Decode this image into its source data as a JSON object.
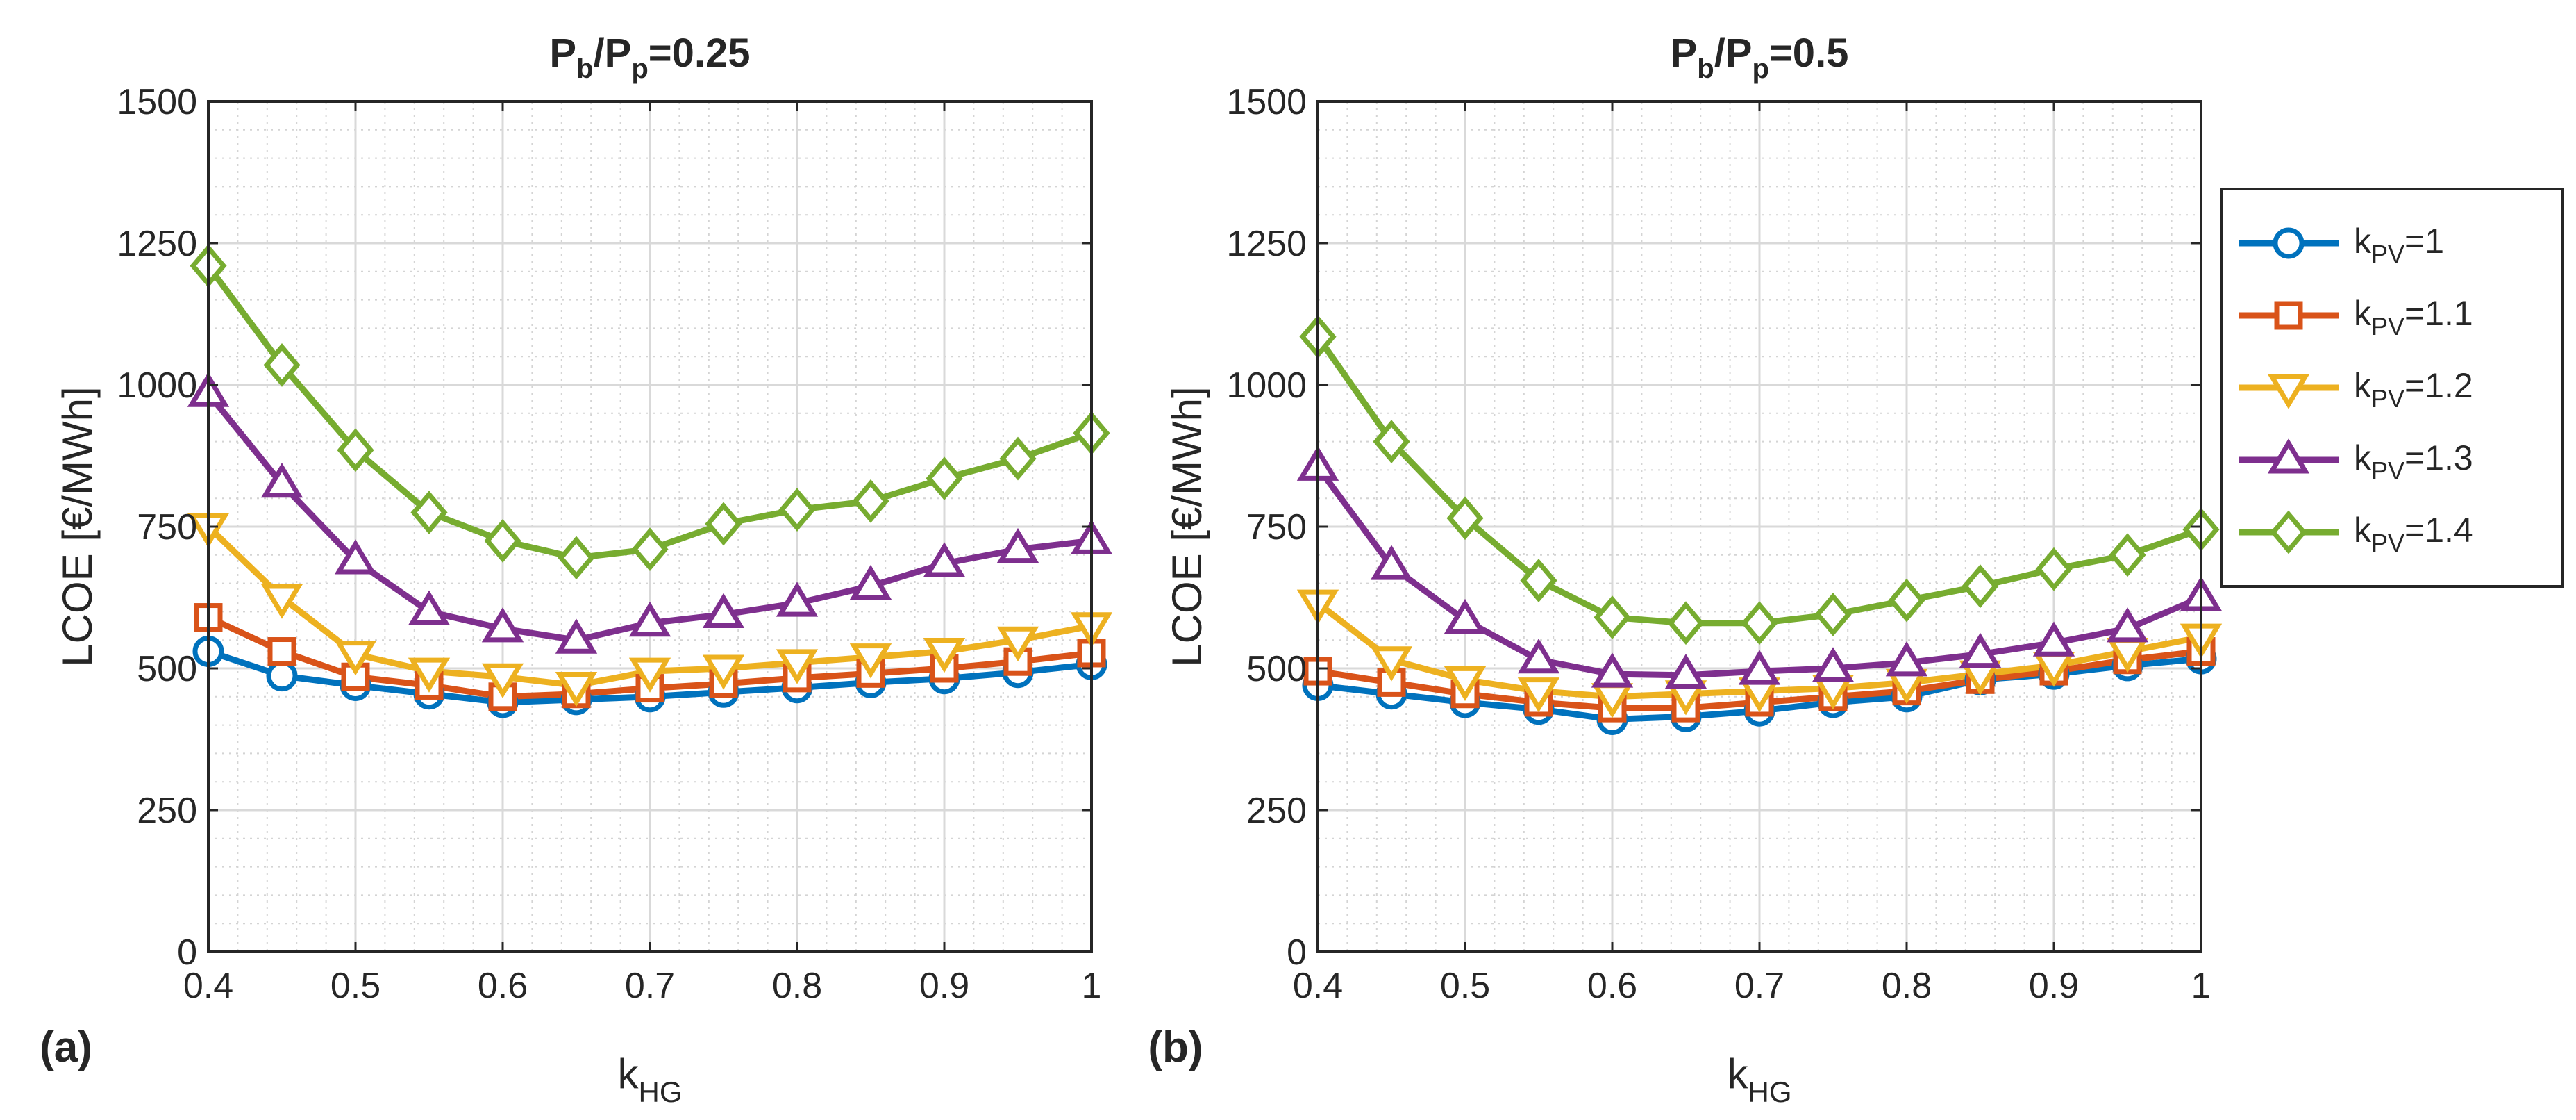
{
  "chart_data": [
    {
      "type": "line",
      "panel_label": "(a)",
      "title": {
        "main": "P",
        "sub1": "b",
        "slash": "/P",
        "sub2": "p",
        "value": "=0.25"
      },
      "xlabel": {
        "main": "k",
        "sub": "HG"
      },
      "ylabel": "LCOE [€/MWh]",
      "xlim": [
        0.4,
        1.0
      ],
      "ylim": [
        0,
        1500
      ],
      "x_ticks": [
        "0.4",
        "0.5",
        "0.6",
        "0.7",
        "0.8",
        "0.9",
        "1"
      ],
      "y_ticks": [
        "0",
        "250",
        "500",
        "750",
        "1000",
        "1250",
        "1500"
      ],
      "grid": true,
      "minor_grid": true,
      "x": [
        0.4,
        0.45,
        0.5,
        0.55,
        0.6,
        0.65,
        0.7,
        0.75,
        0.8,
        0.85,
        0.9,
        0.95,
        1.0
      ],
      "series": [
        {
          "name": "kPV=1",
          "values": [
            530,
            487,
            470,
            455,
            440,
            445,
            450,
            458,
            466,
            475,
            482,
            493,
            507
          ]
        },
        {
          "name": "kPV=1.1",
          "values": [
            590,
            530,
            485,
            470,
            450,
            455,
            465,
            473,
            483,
            491,
            500,
            512,
            527
          ]
        },
        {
          "name": "kPV=1.2",
          "values": [
            750,
            625,
            525,
            495,
            485,
            470,
            495,
            500,
            510,
            520,
            530,
            550,
            575
          ]
        },
        {
          "name": "kPV=1.3",
          "values": [
            985,
            825,
            690,
            600,
            570,
            550,
            580,
            595,
            615,
            645,
            685,
            710,
            725
          ]
        },
        {
          "name": "kPV=1.4",
          "values": [
            1210,
            1035,
            885,
            775,
            725,
            695,
            710,
            755,
            780,
            795,
            835,
            870,
            915
          ]
        }
      ]
    },
    {
      "type": "line",
      "panel_label": "(b)",
      "title": {
        "main": "P",
        "sub1": "b",
        "slash": "/P",
        "sub2": "p",
        "value": "=0.5"
      },
      "xlabel": {
        "main": "k",
        "sub": "HG"
      },
      "ylabel": "LCOE [€/MWh]",
      "xlim": [
        0.4,
        1.0
      ],
      "ylim": [
        0,
        1500
      ],
      "x_ticks": [
        "0.4",
        "0.5",
        "0.6",
        "0.7",
        "0.8",
        "0.9",
        "1"
      ],
      "y_ticks": [
        "0",
        "250",
        "500",
        "750",
        "1000",
        "1250",
        "1500"
      ],
      "grid": true,
      "minor_grid": true,
      "x": [
        0.4,
        0.45,
        0.5,
        0.55,
        0.6,
        0.65,
        0.7,
        0.75,
        0.8,
        0.85,
        0.9,
        0.95,
        1.0
      ],
      "series": [
        {
          "name": "kPV=1",
          "values": [
            470,
            455,
            440,
            428,
            410,
            415,
            425,
            440,
            450,
            480,
            490,
            505,
            517
          ]
        },
        {
          "name": "kPV=1.1",
          "values": [
            495,
            475,
            455,
            440,
            430,
            430,
            440,
            450,
            460,
            480,
            495,
            515,
            530
          ]
        },
        {
          "name": "kPV=1.2",
          "values": [
            615,
            515,
            480,
            460,
            450,
            455,
            460,
            465,
            475,
            490,
            505,
            530,
            555
          ]
        },
        {
          "name": "kPV=1.3",
          "values": [
            855,
            680,
            585,
            515,
            490,
            488,
            495,
            500,
            510,
            525,
            545,
            570,
            625
          ]
        },
        {
          "name": "kPV=1.4",
          "values": [
            1085,
            900,
            765,
            655,
            590,
            580,
            580,
            595,
            620,
            645,
            675,
            700,
            745
          ]
        }
      ]
    }
  ],
  "legend": {
    "placement": "right",
    "items": [
      {
        "main": "k",
        "sub": "PV",
        "value": "=1",
        "color": "#0072BD",
        "marker": "circle"
      },
      {
        "main": "k",
        "sub": "PV",
        "value": "=1.1",
        "color": "#D95319",
        "marker": "square"
      },
      {
        "main": "k",
        "sub": "PV",
        "value": "=1.2",
        "color": "#EDB120",
        "marker": "triangle-down"
      },
      {
        "main": "k",
        "sub": "PV",
        "value": "=1.3",
        "color": "#7E2F8E",
        "marker": "triangle-up"
      },
      {
        "main": "k",
        "sub": "PV",
        "value": "=1.4",
        "color": "#77AC30",
        "marker": "diamond"
      }
    ]
  },
  "colors": [
    "#0072BD",
    "#D95319",
    "#EDB120",
    "#7E2F8E",
    "#77AC30"
  ],
  "markers": [
    "circle",
    "square",
    "triangle-down",
    "triangle-up",
    "diamond"
  ]
}
